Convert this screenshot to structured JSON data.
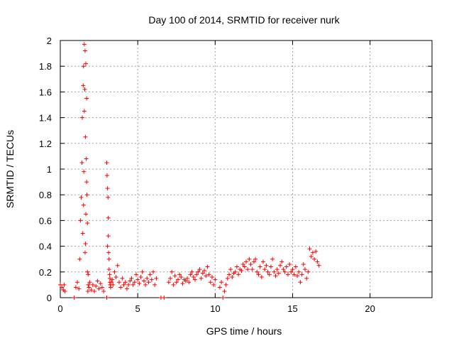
{
  "chart_data": {
    "type": "scatter",
    "title": "Day 100 of 2014, SRMTID for receiver nurk",
    "xlabel": "GPS time / hours",
    "ylabel": "SRMTID / TECUs",
    "xlim": [
      0,
      24
    ],
    "ylim": [
      0,
      2
    ],
    "x_ticks": [
      "0",
      "5",
      "10",
      "15",
      "20"
    ],
    "x_tick_values": [
      0,
      5,
      10,
      15,
      20
    ],
    "y_ticks": [
      "0",
      "0.2",
      "0.4",
      "0.6",
      "0.8",
      "1",
      "1.2",
      "1.4",
      "1.6",
      "1.8",
      "2"
    ],
    "y_tick_values": [
      0,
      0.2,
      0.4,
      0.6,
      0.8,
      1.0,
      1.2,
      1.4,
      1.6,
      1.8,
      2.0
    ],
    "grid": true,
    "marker": "+",
    "colors": {
      "series": "#ff0000",
      "grid": "#a0a0a0",
      "axis": "#000000"
    },
    "series": [
      {
        "x": [
          0.0,
          0.1,
          0.2,
          0.25,
          0.3,
          0.9,
          1.0,
          1.1,
          1.2,
          1.25,
          1.3,
          1.35,
          1.4,
          1.42,
          1.45,
          1.48,
          1.5,
          1.5,
          1.52,
          1.55,
          1.55,
          1.58,
          1.6,
          1.6,
          1.62,
          1.63,
          1.65,
          1.65,
          1.68,
          1.7,
          1.7,
          1.72,
          1.75,
          1.75,
          1.78,
          1.8,
          1.8,
          1.85,
          1.9,
          2.0,
          2.1,
          2.2,
          2.3,
          2.4,
          2.5,
          2.6,
          2.7,
          2.8,
          3.0,
          3.0,
          3.02,
          3.05,
          3.05,
          3.08,
          3.1,
          3.1,
          3.12,
          3.15,
          3.15,
          3.18,
          3.2,
          3.2,
          3.22,
          3.25,
          3.3,
          3.35,
          3.4,
          3.5,
          3.6,
          3.7,
          3.8,
          3.9,
          4.0,
          4.1,
          4.2,
          4.3,
          4.4,
          4.5,
          4.6,
          4.7,
          4.8,
          4.9,
          5.0,
          5.1,
          5.2,
          5.3,
          5.4,
          5.5,
          5.6,
          5.7,
          5.8,
          5.9,
          6.0,
          6.1,
          6.2,
          6.5,
          6.7,
          7.0,
          7.1,
          7.2,
          7.3,
          7.4,
          7.5,
          7.6,
          7.7,
          7.8,
          7.9,
          8.0,
          8.1,
          8.2,
          8.3,
          8.4,
          8.5,
          8.6,
          8.7,
          8.8,
          8.9,
          9.0,
          9.1,
          9.2,
          9.3,
          9.4,
          9.5,
          9.6,
          9.7,
          9.8,
          9.9,
          10.0,
          10.3,
          10.4,
          10.5,
          10.6,
          10.7,
          10.8,
          10.9,
          11.0,
          11.1,
          11.2,
          11.3,
          11.4,
          11.5,
          11.6,
          11.7,
          11.8,
          11.9,
          12.0,
          12.1,
          12.2,
          12.3,
          12.4,
          12.5,
          12.6,
          12.7,
          12.8,
          12.9,
          13.0,
          13.1,
          13.2,
          13.3,
          13.4,
          13.5,
          13.6,
          13.7,
          13.8,
          13.9,
          14.0,
          14.1,
          14.2,
          14.3,
          14.4,
          14.5,
          14.6,
          14.7,
          14.8,
          14.9,
          15.0,
          15.1,
          15.2,
          15.3,
          15.4,
          15.5,
          15.6,
          15.7,
          15.8,
          15.9,
          16.0,
          16.1,
          16.2,
          16.3,
          16.4,
          16.5,
          16.6,
          16.7
        ],
        "y": [
          0.1,
          0.08,
          0.06,
          0.1,
          0.05,
          0.0,
          0.08,
          0.12,
          0.07,
          0.3,
          0.6,
          0.78,
          1.05,
          1.4,
          0.5,
          1.65,
          0.72,
          1.8,
          0.98,
          1.45,
          1.97,
          1.62,
          0.35,
          1.92,
          1.25,
          0.42,
          1.82,
          0.65,
          1.08,
          1.55,
          0.9,
          0.8,
          0.58,
          0.2,
          0.05,
          0.1,
          0.18,
          0.08,
          0.12,
          0.06,
          0.1,
          0.05,
          0.09,
          0.13,
          0.07,
          0.11,
          0.08,
          0.05,
          0.0,
          1.05,
          0.95,
          0.4,
          0.85,
          0.78,
          0.62,
          0.48,
          0.35,
          0.3,
          0.22,
          0.18,
          0.15,
          0.12,
          0.1,
          0.08,
          0.12,
          0.14,
          0.1,
          0.2,
          0.16,
          0.25,
          0.12,
          0.08,
          0.15,
          0.1,
          0.12,
          0.07,
          0.1,
          0.13,
          0.15,
          0.1,
          0.12,
          0.18,
          0.14,
          0.11,
          0.16,
          0.2,
          0.13,
          0.1,
          0.15,
          0.12,
          0.18,
          0.14,
          0.2,
          0.1,
          0.15,
          0.0,
          0.0,
          0.12,
          0.15,
          0.2,
          0.1,
          0.17,
          0.12,
          0.14,
          0.18,
          0.16,
          0.11,
          0.14,
          0.13,
          0.15,
          0.12,
          0.18,
          0.2,
          0.16,
          0.14,
          0.18,
          0.2,
          0.22,
          0.15,
          0.19,
          0.21,
          0.17,
          0.24,
          0.18,
          0.12,
          0.16,
          0.1,
          0.14,
          0.08,
          0.12,
          0.0,
          0.05,
          0.1,
          0.15,
          0.18,
          0.22,
          0.16,
          0.19,
          0.2,
          0.24,
          0.18,
          0.22,
          0.21,
          0.26,
          0.24,
          0.28,
          0.22,
          0.3,
          0.26,
          0.22,
          0.28,
          0.3,
          0.2,
          0.18,
          0.24,
          0.16,
          0.28,
          0.22,
          0.25,
          0.2,
          0.18,
          0.24,
          0.3,
          0.2,
          0.17,
          0.22,
          0.19,
          0.25,
          0.28,
          0.22,
          0.2,
          0.24,
          0.18,
          0.26,
          0.2,
          0.22,
          0.18,
          0.24,
          0.17,
          0.2,
          0.12,
          0.18,
          0.26,
          0.22,
          0.15,
          0.2,
          0.38,
          0.32,
          0.35,
          0.3,
          0.36,
          0.28,
          0.25
        ]
      }
    ]
  }
}
